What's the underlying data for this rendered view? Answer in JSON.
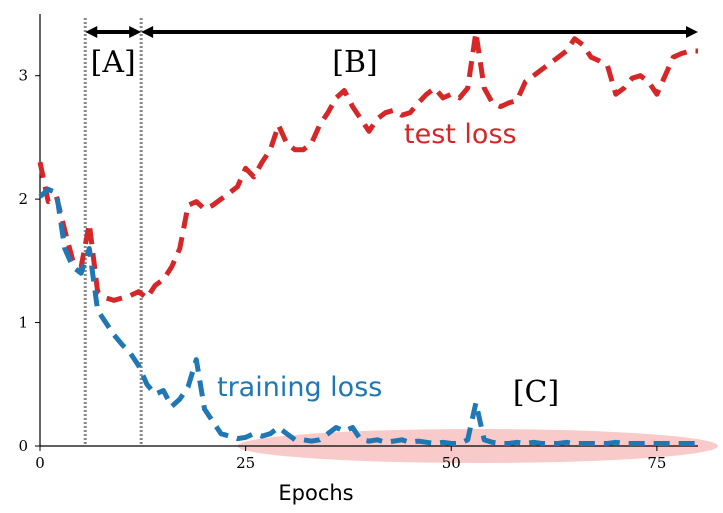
{
  "chart_data": {
    "type": "line",
    "title": "",
    "xlabel": "Epochs",
    "ylabel": "",
    "xlim": [
      0,
      80
    ],
    "ylim": [
      0,
      3.5
    ],
    "xticks": [
      0,
      25,
      50,
      75
    ],
    "yticks": [
      0,
      1,
      2,
      3
    ],
    "grid": false,
    "series": [
      {
        "name": "test loss",
        "color": "#d62728",
        "style": "dashed",
        "x": [
          0,
          1,
          2,
          3,
          4,
          5,
          6,
          7,
          8,
          9,
          10,
          11,
          12,
          13,
          14,
          15,
          16,
          17,
          18,
          19,
          20,
          21,
          22,
          23,
          24,
          25,
          26,
          27,
          28,
          29,
          30,
          31,
          32,
          33,
          34,
          35,
          36,
          37,
          38,
          39,
          40,
          41,
          42,
          43,
          44,
          45,
          46,
          47,
          48,
          49,
          50,
          51,
          52,
          53,
          54,
          55,
          56,
          57,
          58,
          59,
          60,
          61,
          62,
          63,
          64,
          65,
          66,
          67,
          68,
          69,
          70,
          71,
          72,
          73,
          74,
          75,
          76,
          77,
          78,
          79,
          80
        ],
        "values": [
          2.3,
          1.98,
          2.02,
          1.75,
          1.5,
          1.45,
          1.8,
          1.25,
          1.2,
          1.18,
          1.2,
          1.22,
          1.25,
          1.2,
          1.3,
          1.35,
          1.45,
          1.6,
          1.95,
          1.98,
          1.92,
          1.95,
          2.0,
          2.05,
          2.1,
          2.25,
          2.18,
          2.3,
          2.4,
          2.6,
          2.45,
          2.4,
          2.4,
          2.45,
          2.6,
          2.7,
          2.82,
          2.88,
          2.75,
          2.65,
          2.55,
          2.65,
          2.7,
          2.72,
          2.68,
          2.7,
          2.78,
          2.85,
          2.9,
          2.82,
          2.85,
          2.82,
          2.9,
          3.35,
          2.9,
          2.78,
          2.75,
          2.78,
          2.8,
          2.95,
          3.0,
          3.05,
          3.1,
          3.15,
          3.2,
          3.3,
          3.25,
          3.15,
          3.12,
          3.08,
          2.85,
          2.9,
          2.98,
          3.0,
          2.95,
          2.85,
          3.0,
          3.15,
          3.18,
          3.2,
          3.2
        ]
      },
      {
        "name": "training loss",
        "color": "#1f77b4",
        "style": "dashed",
        "x": [
          0,
          1,
          2,
          3,
          4,
          5,
          6,
          7,
          8,
          9,
          10,
          11,
          12,
          13,
          14,
          15,
          16,
          17,
          18,
          19,
          20,
          21,
          22,
          23,
          24,
          25,
          26,
          27,
          28,
          29,
          30,
          31,
          32,
          33,
          34,
          35,
          36,
          37,
          38,
          39,
          40,
          41,
          42,
          43,
          44,
          45,
          46,
          47,
          48,
          49,
          50,
          51,
          52,
          53,
          54,
          55,
          56,
          57,
          58,
          59,
          60,
          61,
          62,
          63,
          64,
          65,
          66,
          67,
          68,
          69,
          70,
          71,
          72,
          73,
          74,
          75,
          76,
          77,
          78,
          79,
          80
        ],
        "values": [
          2.02,
          2.08,
          2.05,
          1.6,
          1.45,
          1.4,
          1.6,
          1.1,
          1.0,
          0.9,
          0.82,
          0.75,
          0.65,
          0.5,
          0.42,
          0.45,
          0.32,
          0.38,
          0.48,
          0.7,
          0.3,
          0.2,
          0.1,
          0.08,
          0.06,
          0.07,
          0.1,
          0.08,
          0.1,
          0.15,
          0.1,
          0.05,
          0.05,
          0.04,
          0.05,
          0.1,
          0.15,
          0.12,
          0.15,
          0.05,
          0.04,
          0.05,
          0.03,
          0.04,
          0.05,
          0.03,
          0.04,
          0.03,
          0.02,
          0.03,
          0.02,
          0.02,
          0.05,
          0.35,
          0.05,
          0.03,
          0.02,
          0.02,
          0.03,
          0.02,
          0.03,
          0.02,
          0.02,
          0.02,
          0.03,
          0.02,
          0.02,
          0.02,
          0.02,
          0.02,
          0.03,
          0.02,
          0.02,
          0.02,
          0.02,
          0.02,
          0.02,
          0.02,
          0.02,
          0.02,
          0.02
        ]
      }
    ],
    "annotations": [
      {
        "label": "[A]",
        "x_start": 5.5,
        "x_end": 12.3
      },
      {
        "label": "[B]",
        "x_start": 12.3,
        "x_end": 80
      },
      {
        "label": "[C]",
        "region_x": [
          24,
          80
        ],
        "region_y": [
          0,
          0
        ]
      }
    ],
    "vlines": [
      5.5,
      12.3
    ],
    "region_color": "#f4a6a6"
  }
}
